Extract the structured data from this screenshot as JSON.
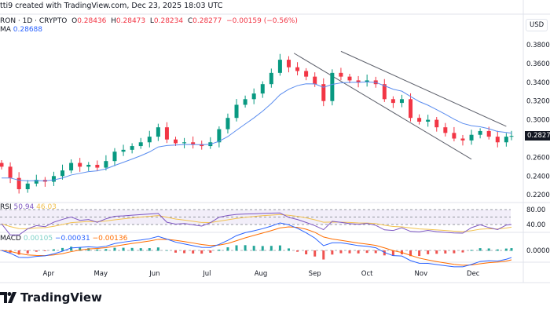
{
  "header": {
    "credit": "tti9 created with TradingView.com, Dec 23, 2025 18:03 UTC"
  },
  "legend": {
    "symbol": "RON · 1D · CRYPTO",
    "o_label": "O",
    "o": "0.28436",
    "h_label": "H",
    "h": "0.28473",
    "l_label": "L",
    "l": "0.28234",
    "c_label": "C",
    "c": "0.28277",
    "change": "−0.00159 (−0.56%)",
    "ma_label": "MA",
    "ma": "0.28688"
  },
  "rsi": {
    "label": "RSI",
    "value": "50.94",
    "signal": "46.03",
    "levels": [
      "80.00",
      "40.00"
    ]
  },
  "macd": {
    "label": "MACD",
    "hist": "0.00105",
    "macd": "−0.00031",
    "signal": "−0.00136",
    "zero": "0.00000"
  },
  "axis": {
    "currency": "USD",
    "last_price": "0.28277",
    "price_ticks": [
      "0.38000",
      "0.36000",
      "0.34000",
      "0.32000",
      "0.30000",
      "0.26000",
      "0.24000",
      "0.22000"
    ],
    "time_ticks": [
      "Apr",
      "May",
      "Jun",
      "Jul",
      "Aug",
      "Sep",
      "Oct",
      "Nov",
      "Dec"
    ]
  },
  "brand": {
    "name": "TradingView"
  },
  "colors": {
    "up": "#089981",
    "down": "#f23645",
    "ma": "#5b8def",
    "rsi": "#7e57c2",
    "rsi_signal": "#f2c14e",
    "macd": "#2962ff",
    "macd_signal": "#ff6d00"
  },
  "chart_data": {
    "type": "candlestick",
    "ylim": [
      0.21,
      0.39
    ],
    "x": [
      "2025-03-05",
      "2025-03-10",
      "2025-03-15",
      "2025-03-20",
      "2025-03-25",
      "2025-03-30",
      "2025-04-04",
      "2025-04-09",
      "2025-04-14",
      "2025-04-19",
      "2025-04-24",
      "2025-04-29",
      "2025-05-04",
      "2025-05-09",
      "2025-05-14",
      "2025-05-19",
      "2025-05-24",
      "2025-05-29",
      "2025-06-03",
      "2025-06-08",
      "2025-06-13",
      "2025-06-18",
      "2025-06-23",
      "2025-06-28",
      "2025-07-03",
      "2025-07-08",
      "2025-07-13",
      "2025-07-18",
      "2025-07-23",
      "2025-07-28",
      "2025-08-02",
      "2025-08-07",
      "2025-08-12",
      "2025-08-17",
      "2025-08-22",
      "2025-08-27",
      "2025-09-01",
      "2025-09-06",
      "2025-09-11",
      "2025-09-16",
      "2025-09-21",
      "2025-09-26",
      "2025-10-01",
      "2025-10-06",
      "2025-10-11",
      "2025-10-16",
      "2025-10-21",
      "2025-10-26",
      "2025-10-31",
      "2025-11-05",
      "2025-11-10",
      "2025-11-15",
      "2025-11-20",
      "2025-11-25",
      "2025-11-30",
      "2025-12-05",
      "2025-12-10",
      "2025-12-15",
      "2025-12-20",
      "2025-12-23"
    ],
    "close": [
      0.25,
      0.238,
      0.226,
      0.232,
      0.236,
      0.234,
      0.24,
      0.246,
      0.254,
      0.25,
      0.252,
      0.249,
      0.256,
      0.266,
      0.268,
      0.272,
      0.276,
      0.282,
      0.292,
      0.279,
      0.275,
      0.276,
      0.274,
      0.272,
      0.276,
      0.29,
      0.302,
      0.316,
      0.322,
      0.328,
      0.338,
      0.35,
      0.364,
      0.356,
      0.352,
      0.346,
      0.338,
      0.32,
      0.35,
      0.346,
      0.342,
      0.34,
      0.342,
      0.338,
      0.322,
      0.318,
      0.322,
      0.302,
      0.298,
      0.3,
      0.292,
      0.286,
      0.28,
      0.278,
      0.284,
      0.288,
      0.282,
      0.276,
      0.282,
      0.28277
    ],
    "trendlines": [
      {
        "from": [
          "2025-08-20",
          0.371
        ],
        "to": [
          "2025-11-30",
          0.258
        ]
      },
      {
        "from": [
          "2025-09-16",
          0.373
        ],
        "to": [
          "2025-12-20",
          0.293
        ]
      }
    ]
  }
}
